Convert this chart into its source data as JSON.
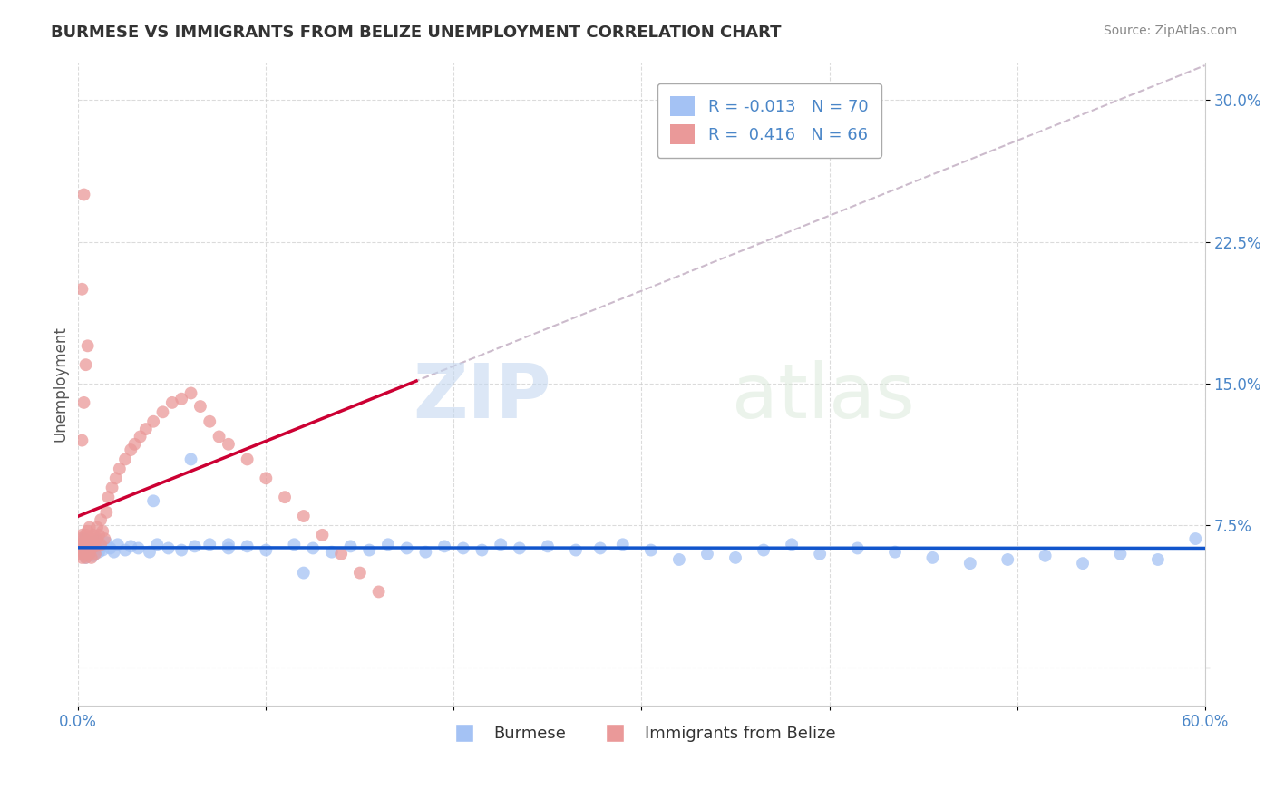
{
  "title": "BURMESE VS IMMIGRANTS FROM BELIZE UNEMPLOYMENT CORRELATION CHART",
  "source_text": "Source: ZipAtlas.com",
  "ylabel": "Unemployment",
  "watermark_zip": "ZIP",
  "watermark_atlas": "atlas",
  "xlim": [
    0.0,
    0.6
  ],
  "ylim": [
    -0.02,
    0.32
  ],
  "xticks": [
    0.0,
    0.1,
    0.2,
    0.3,
    0.4,
    0.5,
    0.6
  ],
  "xticklabels": [
    "0.0%",
    "",
    "",
    "",
    "",
    "",
    "60.0%"
  ],
  "yticks": [
    0.0,
    0.075,
    0.15,
    0.225,
    0.3
  ],
  "yticklabels_right": [
    "",
    "7.5%",
    "15.0%",
    "22.5%",
    "30.0%"
  ],
  "blue_R": -0.013,
  "blue_N": 70,
  "pink_R": 0.416,
  "pink_N": 66,
  "blue_color": "#a4c2f4",
  "pink_color": "#ea9999",
  "blue_line_color": "#1155cc",
  "pink_line_color": "#cc0033",
  "pink_dash_color": "#ccaabb",
  "legend_label_blue": "Burmese",
  "legend_label_pink": "Immigrants from Belize",
  "title_color": "#333333",
  "axis_label_color": "#555555",
  "tick_color": "#4a86c8",
  "grid_color": "#cccccc",
  "blue_x": [
    0.001,
    0.002,
    0.003,
    0.003,
    0.004,
    0.004,
    0.005,
    0.005,
    0.006,
    0.007,
    0.008,
    0.009,
    0.01,
    0.011,
    0.012,
    0.013,
    0.015,
    0.017,
    0.019,
    0.021,
    0.025,
    0.028,
    0.032,
    0.038,
    0.042,
    0.048,
    0.055,
    0.062,
    0.07,
    0.08,
    0.09,
    0.1,
    0.115,
    0.125,
    0.135,
    0.145,
    0.155,
    0.165,
    0.175,
    0.185,
    0.195,
    0.205,
    0.215,
    0.225,
    0.235,
    0.25,
    0.265,
    0.278,
    0.29,
    0.305,
    0.32,
    0.335,
    0.35,
    0.365,
    0.38,
    0.395,
    0.415,
    0.435,
    0.455,
    0.475,
    0.495,
    0.515,
    0.535,
    0.555,
    0.575,
    0.595,
    0.04,
    0.06,
    0.08,
    0.12
  ],
  "blue_y": [
    0.065,
    0.062,
    0.068,
    0.06,
    0.058,
    0.064,
    0.063,
    0.061,
    0.066,
    0.065,
    0.059,
    0.063,
    0.067,
    0.061,
    0.064,
    0.062,
    0.066,
    0.063,
    0.061,
    0.065,
    0.062,
    0.064,
    0.063,
    0.061,
    0.065,
    0.063,
    0.062,
    0.064,
    0.065,
    0.063,
    0.064,
    0.062,
    0.065,
    0.063,
    0.061,
    0.064,
    0.062,
    0.065,
    0.063,
    0.061,
    0.064,
    0.063,
    0.062,
    0.065,
    0.063,
    0.064,
    0.062,
    0.063,
    0.065,
    0.062,
    0.057,
    0.06,
    0.058,
    0.062,
    0.065,
    0.06,
    0.063,
    0.061,
    0.058,
    0.055,
    0.057,
    0.059,
    0.055,
    0.06,
    0.057,
    0.068,
    0.088,
    0.11,
    0.065,
    0.05
  ],
  "pink_x": [
    0.001,
    0.001,
    0.001,
    0.002,
    0.002,
    0.002,
    0.003,
    0.003,
    0.003,
    0.004,
    0.004,
    0.004,
    0.005,
    0.005,
    0.005,
    0.005,
    0.006,
    0.006,
    0.006,
    0.007,
    0.007,
    0.007,
    0.008,
    0.008,
    0.009,
    0.009,
    0.01,
    0.01,
    0.011,
    0.012,
    0.012,
    0.013,
    0.014,
    0.015,
    0.016,
    0.018,
    0.02,
    0.022,
    0.025,
    0.028,
    0.03,
    0.033,
    0.036,
    0.04,
    0.045,
    0.05,
    0.055,
    0.06,
    0.065,
    0.07,
    0.075,
    0.08,
    0.09,
    0.1,
    0.11,
    0.12,
    0.13,
    0.14,
    0.15,
    0.16,
    0.002,
    0.003,
    0.004,
    0.005,
    0.003,
    0.002
  ],
  "pink_y": [
    0.065,
    0.06,
    0.068,
    0.062,
    0.058,
    0.07,
    0.064,
    0.06,
    0.066,
    0.062,
    0.058,
    0.07,
    0.064,
    0.06,
    0.068,
    0.072,
    0.065,
    0.06,
    0.074,
    0.068,
    0.063,
    0.058,
    0.066,
    0.07,
    0.064,
    0.06,
    0.068,
    0.074,
    0.07,
    0.065,
    0.078,
    0.072,
    0.068,
    0.082,
    0.09,
    0.095,
    0.1,
    0.105,
    0.11,
    0.115,
    0.118,
    0.122,
    0.126,
    0.13,
    0.135,
    0.14,
    0.142,
    0.145,
    0.138,
    0.13,
    0.122,
    0.118,
    0.11,
    0.1,
    0.09,
    0.08,
    0.07,
    0.06,
    0.05,
    0.04,
    0.12,
    0.14,
    0.16,
    0.17,
    0.25,
    0.2
  ]
}
